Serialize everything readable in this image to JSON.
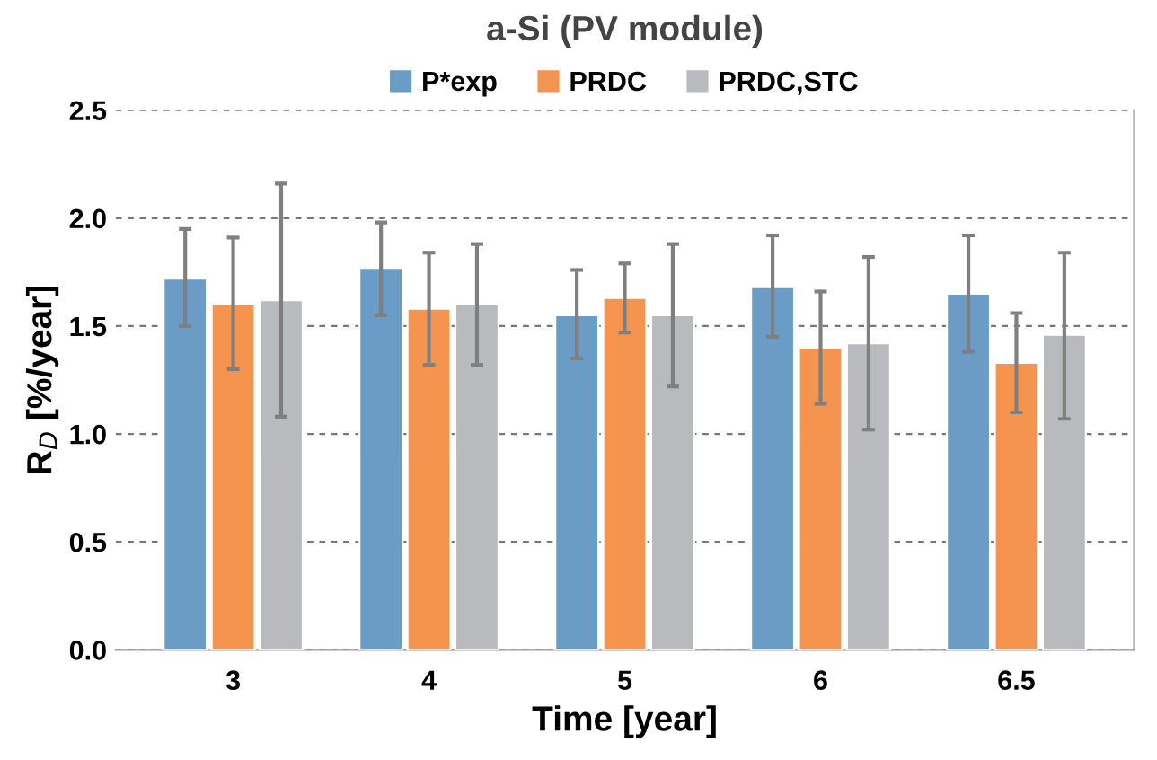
{
  "chart_data": {
    "type": "bar",
    "title": "a-Si (PV module)",
    "xlabel": "Time [year]",
    "ylabel": "R$_{D}$ [%/year]",
    "categories": [
      "3",
      "4",
      "5",
      "6",
      "6.5"
    ],
    "series": [
      {
        "name": "P*exp",
        "color": "#6a9cc6",
        "values": [
          1.72,
          1.77,
          1.55,
          1.68,
          1.65
        ],
        "errors": [
          [
            1.5,
            1.95
          ],
          [
            1.55,
            1.98
          ],
          [
            1.35,
            1.76
          ],
          [
            1.45,
            1.92
          ],
          [
            1.38,
            1.92
          ]
        ]
      },
      {
        "name": "PRDC",
        "color": "#f5944e",
        "values": [
          1.6,
          1.58,
          1.63,
          1.4,
          1.33
        ],
        "errors": [
          [
            1.3,
            1.91
          ],
          [
            1.32,
            1.84
          ],
          [
            1.47,
            1.79
          ],
          [
            1.14,
            1.66
          ],
          [
            1.1,
            1.56
          ]
        ]
      },
      {
        "name": "PRDC,STC",
        "color": "#b9babd",
        "values": [
          1.62,
          1.6,
          1.55,
          1.42,
          1.46
        ],
        "errors": [
          [
            1.08,
            2.16
          ],
          [
            1.32,
            1.88
          ],
          [
            1.22,
            1.88
          ],
          [
            1.02,
            1.82
          ],
          [
            1.07,
            1.84
          ]
        ]
      }
    ],
    "ylim": [
      0,
      2.5
    ],
    "yticks": [
      {
        "value": 0,
        "label": "0.0"
      },
      {
        "value": 0.5,
        "label": "0.5"
      },
      {
        "value": 1,
        "label": "1.0"
      },
      {
        "value": 1.5,
        "label": "1.5"
      },
      {
        "value": 2,
        "label": "2.0"
      },
      {
        "value": 2.5,
        "label": "2.5"
      }
    ],
    "grid": "y",
    "legend": "top"
  }
}
